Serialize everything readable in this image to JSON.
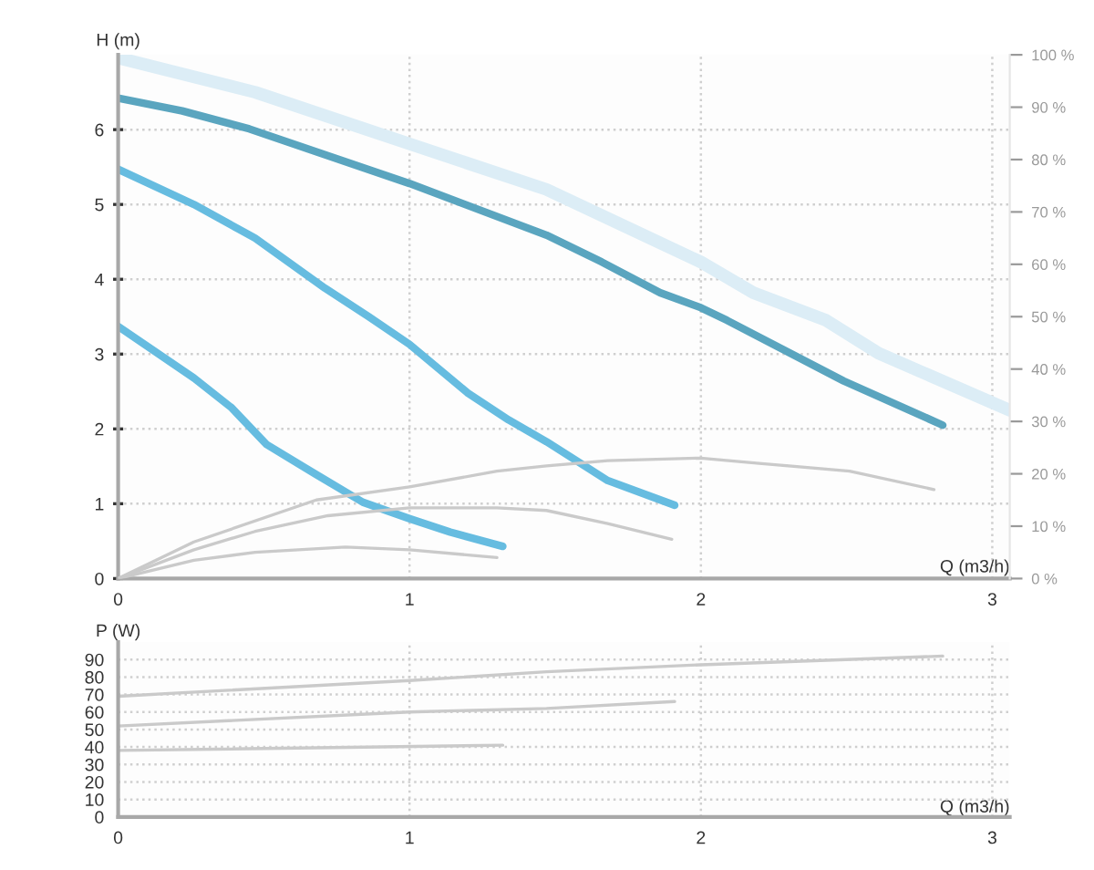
{
  "chart_data": [
    {
      "type": "line",
      "xlabel": "Q (m3/h)",
      "ylabel": "H (m)",
      "xlim": [
        0,
        3.06
      ],
      "xticks": [
        0,
        1,
        2,
        3
      ],
      "ylim": [
        0,
        7
      ],
      "yticks": [
        0,
        1,
        2,
        3,
        4,
        5,
        6
      ],
      "y2lim": [
        0,
        100
      ],
      "y2ticks": [
        {
          "value": 0,
          "label": "0 %"
        },
        {
          "value": 10,
          "label": "10 %"
        },
        {
          "value": 20,
          "label": "20 %"
        },
        {
          "value": 30,
          "label": "30 %"
        },
        {
          "value": 40,
          "label": "40 %"
        },
        {
          "value": 50,
          "label": "50 %"
        },
        {
          "value": 60,
          "label": "60 %"
        },
        {
          "value": 70,
          "label": "70 %"
        },
        {
          "value": 80,
          "label": "80 %"
        },
        {
          "value": 90,
          "label": "90 %"
        },
        {
          "value": 100,
          "label": "100 %"
        }
      ],
      "grid": true,
      "series": [
        {
          "color": "#dcedf6",
          "x": [
            0,
            0.47,
            1.0,
            1.47,
            2.0,
            2.18,
            2.43,
            2.61,
            3.06
          ],
          "values": [
            6.96,
            6.5,
            5.81,
            5.2,
            4.23,
            3.82,
            3.45,
            3.01,
            2.25
          ]
        },
        {
          "color": "#5aa5bf",
          "x": [
            0,
            0.22,
            0.45,
            1.0,
            1.47,
            1.66,
            1.86,
            2.0,
            2.09,
            2.49,
            2.83
          ],
          "values": [
            6.42,
            6.25,
            6.01,
            5.28,
            4.59,
            4.23,
            3.82,
            3.62,
            3.45,
            2.64,
            2.05
          ]
        },
        {
          "color": "#66bce0",
          "x": [
            0,
            0.26,
            0.47,
            0.71,
            0.86,
            1.0,
            1.2,
            1.34,
            1.47,
            1.68,
            1.91
          ],
          "values": [
            5.47,
            5.0,
            4.55,
            3.88,
            3.5,
            3.13,
            2.48,
            2.12,
            1.83,
            1.31,
            0.98
          ]
        },
        {
          "color": "#66bce0",
          "x": [
            0,
            0.26,
            0.39,
            0.51,
            0.68,
            0.84,
            1.0,
            1.14,
            1.32
          ],
          "values": [
            3.37,
            2.68,
            2.28,
            1.79,
            1.39,
            1.02,
            0.8,
            0.62,
            0.43
          ]
        },
        {
          "color": "#cacaca",
          "axis": "y2",
          "x": [
            0,
            0.26,
            0.68,
            1.0,
            1.3,
            1.47,
            1.68,
            2.0,
            2.2,
            2.51,
            2.8
          ],
          "values": [
            0,
            7,
            15,
            17.5,
            20.5,
            21.5,
            22.5,
            23,
            22,
            20.5,
            17
          ]
        },
        {
          "color": "#cacaca",
          "axis": "y2",
          "x": [
            0,
            0.26,
            0.47,
            0.72,
            1.0,
            1.3,
            1.47,
            1.68,
            1.9
          ],
          "values": [
            0,
            5.5,
            9,
            12,
            13.5,
            13.5,
            13,
            10.5,
            7.5
          ]
        },
        {
          "color": "#cacaca",
          "axis": "y2",
          "x": [
            0,
            0.26,
            0.47,
            0.78,
            1.0,
            1.3
          ],
          "values": [
            0,
            3.5,
            5,
            6,
            5.5,
            4
          ]
        }
      ]
    },
    {
      "type": "line",
      "xlabel": "Q (m3/h)",
      "ylabel": "P (W)",
      "xlim": [
        0,
        3.06
      ],
      "xticks": [
        0,
        1,
        2,
        3
      ],
      "ylim": [
        0,
        100
      ],
      "yticks": [
        0,
        10,
        20,
        30,
        40,
        50,
        60,
        70,
        80,
        90
      ],
      "grid": true,
      "series": [
        {
          "color": "#cacaca",
          "x": [
            0,
            1.0,
            1.47,
            2.0,
            2.83
          ],
          "values": [
            69,
            78,
            83,
            87,
            92
          ]
        },
        {
          "color": "#cacaca",
          "x": [
            0,
            1.0,
            1.47,
            1.91
          ],
          "values": [
            52,
            60,
            62,
            66
          ]
        },
        {
          "color": "#cacaca",
          "x": [
            0,
            1.32
          ],
          "values": [
            38,
            41
          ]
        }
      ]
    }
  ]
}
